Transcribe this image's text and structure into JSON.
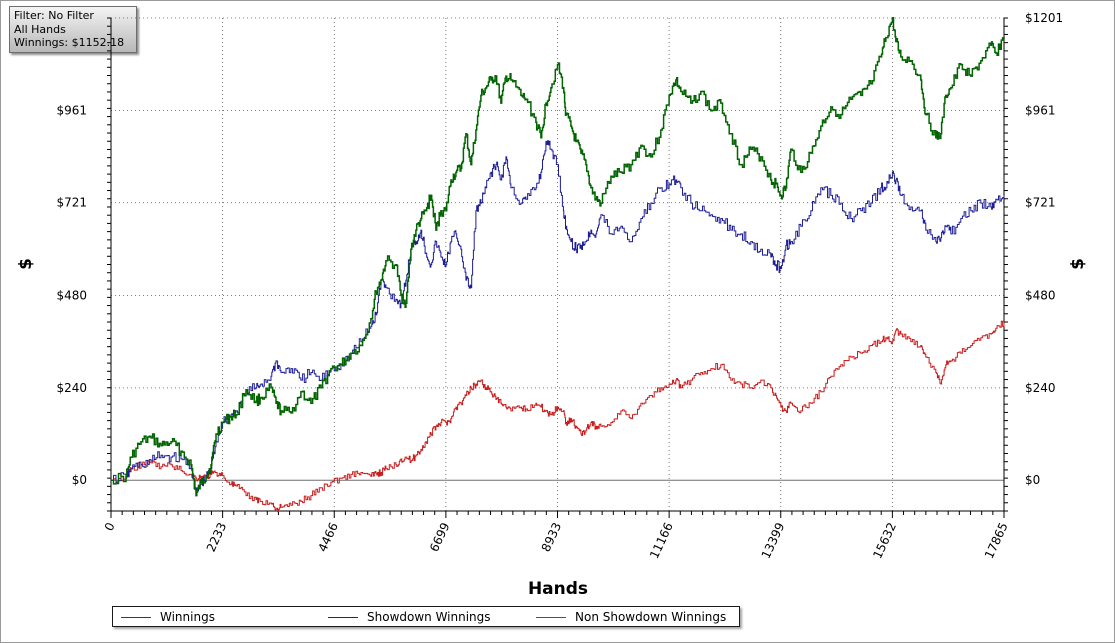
{
  "filter_box": {
    "line1": "Filter: No Filter",
    "line2": "All Hands",
    "line3": "Winnings: $1152.18"
  },
  "chart_data": {
    "type": "line",
    "xlabel": "Hands",
    "ylabel": "$",
    "ylabel_right": "$",
    "xlim": [
      0,
      17865
    ],
    "ylim": [
      -80,
      1201
    ],
    "x_ticks": [
      "0",
      "2233",
      "4466",
      "6699",
      "8933",
      "11166",
      "13399",
      "15632",
      "17865"
    ],
    "x_tick_values": [
      0,
      2233,
      4466,
      6699,
      8933,
      11166,
      13399,
      15632,
      17865
    ],
    "y_ticks_left": [
      "$961",
      "$721",
      "$480",
      "$240",
      "$0"
    ],
    "y_ticks_right": [
      "$1201",
      "$961",
      "$721",
      "$480",
      "$240",
      "$0"
    ],
    "y_tick_values": [
      0,
      240,
      480,
      721,
      961,
      1201
    ],
    "grid": true,
    "legend_position": "bottom",
    "series": [
      {
        "name": "Winnings",
        "color": "#006400",
        "x": [
          0,
          300,
          400,
          600,
          800,
          1000,
          1200,
          1400,
          1600,
          1700,
          1800,
          1900,
          2000,
          2100,
          2233,
          2400,
          2500,
          2700,
          2900,
          3000,
          3200,
          3300,
          3400,
          3600,
          3800,
          4000,
          4200,
          4400,
          4600,
          4800,
          5000,
          5200,
          5300,
          5400,
          5500,
          5700,
          5800,
          5900,
          6000,
          6100,
          6200,
          6300,
          6400,
          6500,
          6600,
          6699,
          6800,
          6900,
          7000,
          7100,
          7200,
          7300,
          7400,
          7500,
          7600,
          7700,
          7800,
          7900,
          8000,
          8200,
          8300,
          8500,
          8600,
          8700,
          8800,
          8933,
          9050,
          9100,
          9200,
          9300,
          9400,
          9500,
          9600,
          9700,
          9800,
          10000,
          10200,
          10400,
          10600,
          10800,
          11000,
          11166,
          11300,
          11400,
          11600,
          11800,
          12000,
          12200,
          12400,
          12600,
          12800,
          13000,
          13200,
          13300,
          13399,
          13500,
          13600,
          13800,
          14000,
          14200,
          14400,
          14600,
          14800,
          15000,
          15200,
          15400,
          15500,
          15632,
          15700,
          15800,
          16000,
          16200,
          16300,
          16500,
          16600,
          16700,
          16800,
          17000,
          17200,
          17400,
          17600,
          17700,
          17865
        ],
        "values": [
          0,
          10,
          60,
          100,
          110,
          90,
          100,
          75,
          40,
          -40,
          -5,
          10,
          40,
          120,
          150,
          165,
          170,
          235,
          205,
          215,
          240,
          200,
          180,
          175,
          230,
          200,
          240,
          290,
          300,
          330,
          350,
          420,
          490,
          520,
          570,
          560,
          480,
          460,
          600,
          650,
          680,
          700,
          740,
          650,
          700,
          700,
          780,
          800,
          810,
          900,
          820,
          910,
          1000,
          1020,
          1040,
          1050,
          980,
          1050,
          1040,
          1000,
          990,
          930,
          890,
          980,
          1020,
          1080,
          1020,
          950,
          920,
          880,
          850,
          820,
          760,
          730,
          720,
          790,
          800,
          820,
          870,
          840,
          910,
          1000,
          1040,
          1010,
          980,
          1010,
          960,
          980,
          900,
          820,
          860,
          840,
          780,
          770,
          740,
          760,
          860,
          800,
          850,
          920,
          970,
          950,
          990,
          1000,
          1030,
          1100,
          1150,
          1200,
          1140,
          1100,
          1090,
          1040,
          950,
          890,
          900,
          1000,
          1020,
          1080,
          1050,
          1090,
          1130,
          1110,
          1152
        ]
      },
      {
        "name": "Showdown Winnings",
        "color": "#1e1e96",
        "x": [
          0,
          300,
          400,
          600,
          800,
          1000,
          1200,
          1400,
          1600,
          1700,
          1800,
          1900,
          2000,
          2100,
          2233,
          2400,
          2500,
          2700,
          2900,
          3000,
          3200,
          3300,
          3400,
          3600,
          3800,
          4000,
          4200,
          4400,
          4600,
          4800,
          5000,
          5200,
          5300,
          5400,
          5500,
          5700,
          5800,
          5900,
          6000,
          6100,
          6200,
          6300,
          6400,
          6500,
          6600,
          6699,
          6800,
          6900,
          7000,
          7100,
          7200,
          7300,
          7400,
          7500,
          7600,
          7700,
          7800,
          7900,
          8000,
          8200,
          8300,
          8500,
          8600,
          8700,
          8800,
          8933,
          9050,
          9100,
          9200,
          9300,
          9400,
          9500,
          9600,
          9700,
          9800,
          10000,
          10200,
          10400,
          10600,
          10800,
          11000,
          11166,
          11300,
          11400,
          11600,
          11800,
          12000,
          12200,
          12400,
          12600,
          12800,
          13000,
          13200,
          13300,
          13399,
          13500,
          13600,
          13800,
          14000,
          14200,
          14400,
          14600,
          14800,
          15000,
          15200,
          15400,
          15500,
          15632,
          15700,
          15800,
          16000,
          16200,
          16300,
          16500,
          16600,
          16700,
          16800,
          17000,
          17200,
          17400,
          17600,
          17700,
          17865
        ],
        "values": [
          0,
          10,
          30,
          40,
          50,
          65,
          60,
          55,
          40,
          -35,
          -10,
          5,
          30,
          100,
          150,
          170,
          180,
          230,
          240,
          250,
          270,
          310,
          280,
          290,
          260,
          280,
          260,
          290,
          300,
          330,
          360,
          400,
          430,
          520,
          500,
          470,
          460,
          520,
          600,
          620,
          650,
          590,
          560,
          620,
          580,
          560,
          620,
          640,
          600,
          520,
          500,
          700,
          720,
          760,
          800,
          820,
          780,
          840,
          760,
          720,
          730,
          760,
          800,
          880,
          860,
          820,
          700,
          660,
          620,
          600,
          610,
          620,
          650,
          640,
          690,
          640,
          660,
          620,
          680,
          720,
          760,
          770,
          780,
          760,
          720,
          700,
          690,
          680,
          650,
          640,
          620,
          600,
          580,
          560,
          550,
          610,
          620,
          660,
          700,
          760,
          740,
          720,
          680,
          700,
          720,
          760,
          760,
          800,
          780,
          740,
          710,
          700,
          650,
          620,
          630,
          660,
          640,
          680,
          700,
          720,
          710,
          730,
          740
        ]
      },
      {
        "name": "Non Showdown Winnings",
        "color": "#c81e1e",
        "x": [
          0,
          300,
          400,
          600,
          800,
          1000,
          1200,
          1400,
          1600,
          1700,
          1800,
          1900,
          2000,
          2100,
          2233,
          2400,
          2500,
          2700,
          2900,
          3000,
          3200,
          3300,
          3400,
          3600,
          3800,
          4000,
          4200,
          4400,
          4600,
          4800,
          5000,
          5200,
          5300,
          5400,
          5500,
          5700,
          5800,
          5900,
          6000,
          6100,
          6200,
          6300,
          6400,
          6500,
          6600,
          6699,
          6800,
          6900,
          7000,
          7100,
          7200,
          7300,
          7400,
          7500,
          7600,
          7700,
          7800,
          7900,
          8000,
          8200,
          8300,
          8500,
          8600,
          8700,
          8800,
          8933,
          9050,
          9100,
          9200,
          9300,
          9400,
          9500,
          9600,
          9700,
          9800,
          10000,
          10200,
          10400,
          10600,
          10800,
          11000,
          11166,
          11300,
          11400,
          11600,
          11800,
          12000,
          12200,
          12400,
          12600,
          12800,
          13000,
          13200,
          13300,
          13399,
          13500,
          13600,
          13800,
          14000,
          14200,
          14400,
          14600,
          14800,
          15000,
          15200,
          15400,
          15500,
          15632,
          15700,
          15800,
          16000,
          16200,
          16300,
          16500,
          16600,
          16700,
          16800,
          17000,
          17200,
          17400,
          17600,
          17700,
          17865
        ],
        "values": [
          0,
          5,
          30,
          40,
          45,
          35,
          40,
          25,
          15,
          5,
          10,
          8,
          15,
          20,
          12,
          -10,
          -15,
          -40,
          -50,
          -55,
          -60,
          -75,
          -70,
          -65,
          -55,
          -40,
          -20,
          -5,
          5,
          15,
          20,
          10,
          18,
          20,
          30,
          40,
          55,
          60,
          50,
          65,
          80,
          100,
          120,
          140,
          150,
          150,
          160,
          190,
          200,
          220,
          240,
          250,
          260,
          240,
          230,
          210,
          200,
          190,
          180,
          190,
          185,
          200,
          190,
          180,
          170,
          190,
          180,
          150,
          160,
          140,
          120,
          130,
          150,
          140,
          140,
          150,
          180,
          160,
          200,
          220,
          240,
          250,
          260,
          240,
          260,
          280,
          290,
          300,
          260,
          250,
          240,
          260,
          240,
          220,
          190,
          180,
          200,
          180,
          200,
          230,
          270,
          300,
          320,
          330,
          350,
          360,
          370,
          360,
          390,
          380,
          360,
          350,
          320,
          280,
          250,
          300,
          310,
          330,
          350,
          370,
          380,
          395,
          410
        ]
      }
    ]
  }
}
